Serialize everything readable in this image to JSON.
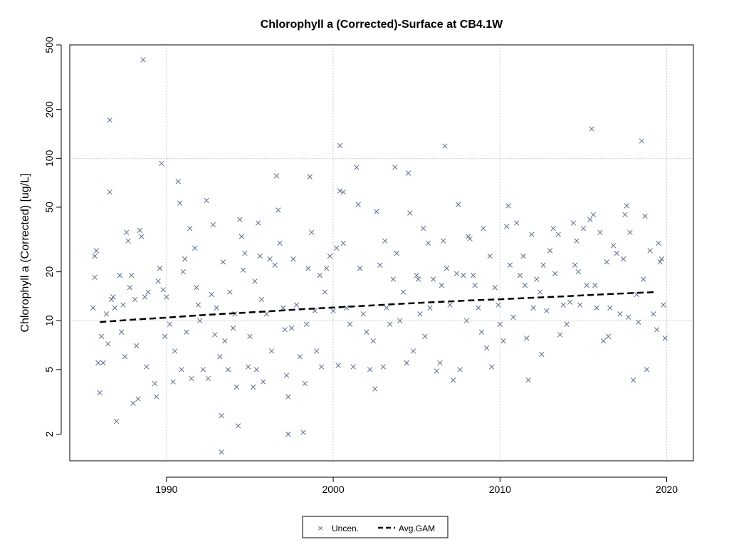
{
  "chart_data": {
    "type": "scatter",
    "title": "Chlorophyll a (Corrected)-Surface at CB4.1W",
    "xlabel": "",
    "ylabel": "Chlorophyll a (Corrected) [ug/L]",
    "xlim": [
      1984.2,
      2021.6
    ],
    "ylim": [
      1.37,
      500
    ],
    "y_scale": "log",
    "x_ticks": [
      1990,
      2000,
      2010,
      2020
    ],
    "y_ticks": [
      2,
      5,
      10,
      20,
      50,
      100,
      200,
      500
    ],
    "grid": true,
    "legend": {
      "position": "bottom-center",
      "entries": [
        "Uncen.",
        "Avg.GAM"
      ]
    },
    "colors": {
      "points": "#5a6e8c",
      "gam": "#000000",
      "grid": "#cccccc"
    },
    "series": [
      {
        "name": "Uncen.",
        "kind": "points",
        "marker": "x",
        "points": [
          [
            1985.6,
            12.0
          ],
          [
            1985.7,
            25.0
          ],
          [
            1985.8,
            27.0
          ],
          [
            1985.7,
            18.5
          ],
          [
            1985.9,
            5.5
          ],
          [
            1986.0,
            3.6
          ],
          [
            1986.1,
            8.0
          ],
          [
            1986.2,
            5.5
          ],
          [
            1986.4,
            11.0
          ],
          [
            1986.5,
            7.2
          ],
          [
            1986.6,
            62.0
          ],
          [
            1986.6,
            172.0
          ],
          [
            1986.7,
            13.5
          ],
          [
            1986.8,
            14.0
          ],
          [
            1986.9,
            12.0
          ],
          [
            1987.0,
            2.4
          ],
          [
            1987.2,
            19.0
          ],
          [
            1987.3,
            8.5
          ],
          [
            1987.4,
            12.5
          ],
          [
            1987.5,
            6.0
          ],
          [
            1987.6,
            35.0
          ],
          [
            1987.7,
            31.0
          ],
          [
            1987.8,
            16.0
          ],
          [
            1987.9,
            19.0
          ],
          [
            1988.0,
            3.1
          ],
          [
            1988.2,
            7.0
          ],
          [
            1988.3,
            3.3
          ],
          [
            1988.4,
            36.0
          ],
          [
            1988.5,
            33.0
          ],
          [
            1988.6,
            405.0
          ],
          [
            1988.7,
            14.0
          ],
          [
            1988.8,
            5.2
          ],
          [
            1988.9,
            15.0
          ],
          [
            1989.3,
            4.1
          ],
          [
            1989.4,
            3.4
          ],
          [
            1989.5,
            17.5
          ],
          [
            1989.6,
            21.0
          ],
          [
            1989.7,
            93.0
          ],
          [
            1989.8,
            15.5
          ],
          [
            1989.9,
            8.0
          ],
          [
            1990.0,
            14.0
          ],
          [
            1990.2,
            9.5
          ],
          [
            1990.4,
            4.2
          ],
          [
            1990.5,
            6.5
          ],
          [
            1990.7,
            72.0
          ],
          [
            1990.8,
            53.0
          ],
          [
            1990.9,
            5.0
          ],
          [
            1991.0,
            20.0
          ],
          [
            1991.2,
            8.5
          ],
          [
            1991.4,
            37.0
          ],
          [
            1991.5,
            4.4
          ],
          [
            1991.7,
            28.0
          ],
          [
            1991.8,
            16.0
          ],
          [
            1991.9,
            12.5
          ],
          [
            1992.0,
            10.0
          ],
          [
            1992.2,
            5.0
          ],
          [
            1992.4,
            55.0
          ],
          [
            1992.5,
            4.4
          ],
          [
            1992.7,
            14.5
          ],
          [
            1992.8,
            39.0
          ],
          [
            1992.9,
            8.2
          ],
          [
            1993.0,
            12.0
          ],
          [
            1993.2,
            6.0
          ],
          [
            1993.3,
            2.6
          ],
          [
            1993.3,
            1.55
          ],
          [
            1993.4,
            23.0
          ],
          [
            1993.5,
            7.5
          ],
          [
            1993.7,
            5.0
          ],
          [
            1993.8,
            15.0
          ],
          [
            1994.0,
            9.0
          ],
          [
            1994.2,
            3.9
          ],
          [
            1994.3,
            2.25
          ],
          [
            1994.4,
            42.0
          ],
          [
            1994.5,
            33.0
          ],
          [
            1994.6,
            20.5
          ],
          [
            1994.7,
            26.0
          ],
          [
            1994.9,
            5.2
          ],
          [
            1995.0,
            8.0
          ],
          [
            1995.2,
            3.9
          ],
          [
            1995.3,
            17.5
          ],
          [
            1995.4,
            5.0
          ],
          [
            1995.5,
            40.0
          ],
          [
            1995.6,
            25.0
          ],
          [
            1995.7,
            13.5
          ],
          [
            1995.8,
            4.2
          ],
          [
            1996.0,
            11.0
          ],
          [
            1996.2,
            24.0
          ],
          [
            1996.3,
            6.5
          ],
          [
            1996.5,
            22.0
          ],
          [
            1996.6,
            78.0
          ],
          [
            1996.7,
            48.0
          ],
          [
            1996.8,
            30.0
          ],
          [
            1997.0,
            12.0
          ],
          [
            1997.2,
            4.6
          ],
          [
            1997.3,
            3.4
          ],
          [
            1997.3,
            2.0
          ],
          [
            1997.5,
            9.0
          ],
          [
            1997.6,
            24.0
          ],
          [
            1997.8,
            12.5
          ],
          [
            1998.0,
            6.0
          ],
          [
            1998.2,
            2.05
          ],
          [
            1998.3,
            4.1
          ],
          [
            1998.4,
            9.5
          ],
          [
            1998.5,
            21.0
          ],
          [
            1998.6,
            77.0
          ],
          [
            1998.7,
            35.0
          ],
          [
            1998.9,
            11.5
          ],
          [
            1999.0,
            6.5
          ],
          [
            1999.2,
            19.0
          ],
          [
            1999.3,
            5.2
          ],
          [
            1999.5,
            15.0
          ],
          [
            1999.6,
            21.0
          ],
          [
            1999.8,
            25.0
          ],
          [
            2000.0,
            11.5
          ],
          [
            2000.2,
            28.0
          ],
          [
            2000.3,
            5.3
          ],
          [
            2000.4,
            120.0
          ],
          [
            2000.4,
            63.0
          ],
          [
            2000.6,
            62.0
          ],
          [
            2000.6,
            30.0
          ],
          [
            2000.8,
            12.0
          ],
          [
            2001.0,
            9.5
          ],
          [
            2001.2,
            5.2
          ],
          [
            2001.4,
            88.0
          ],
          [
            2001.5,
            52.0
          ],
          [
            2001.6,
            21.0
          ],
          [
            2001.8,
            11.0
          ],
          [
            2002.0,
            8.5
          ],
          [
            2002.2,
            5.0
          ],
          [
            2002.4,
            7.5
          ],
          [
            2002.5,
            3.8
          ],
          [
            2002.6,
            47.0
          ],
          [
            2002.8,
            22.0
          ],
          [
            2003.0,
            5.2
          ],
          [
            2003.2,
            12.0
          ],
          [
            2003.4,
            9.5
          ],
          [
            2003.6,
            18.0
          ],
          [
            2003.7,
            88.0
          ],
          [
            2003.8,
            26.0
          ],
          [
            2004.0,
            10.0
          ],
          [
            2004.2,
            15.0
          ],
          [
            2004.4,
            5.5
          ],
          [
            2004.5,
            81.0
          ],
          [
            2004.6,
            46.0
          ],
          [
            2004.8,
            6.5
          ],
          [
            2005.0,
            19.0
          ],
          [
            2005.2,
            11.0
          ],
          [
            2005.4,
            37.0
          ],
          [
            2005.5,
            8.0
          ],
          [
            2005.7,
            30.0
          ],
          [
            2005.8,
            12.0
          ],
          [
            2006.0,
            18.0
          ],
          [
            2006.2,
            4.9
          ],
          [
            2006.4,
            5.5
          ],
          [
            2006.5,
            16.5
          ],
          [
            2006.6,
            31.0
          ],
          [
            2006.7,
            119.0
          ],
          [
            2006.8,
            21.0
          ],
          [
            2007.0,
            12.5
          ],
          [
            2007.2,
            4.3
          ],
          [
            2007.4,
            19.5
          ],
          [
            2007.5,
            52.0
          ],
          [
            2007.6,
            5.0
          ],
          [
            2007.8,
            19.0
          ],
          [
            2008.0,
            10.0
          ],
          [
            2008.2,
            32.0
          ],
          [
            2008.4,
            19.0
          ],
          [
            2008.5,
            16.5
          ],
          [
            2008.7,
            12.0
          ],
          [
            2008.9,
            8.5
          ],
          [
            2009.0,
            37.0
          ],
          [
            2009.2,
            6.8
          ],
          [
            2009.4,
            25.0
          ],
          [
            2009.5,
            5.2
          ],
          [
            2009.7,
            16.0
          ],
          [
            2009.9,
            12.5
          ],
          [
            2010.0,
            9.5
          ],
          [
            2010.2,
            7.5
          ],
          [
            2010.4,
            38.0
          ],
          [
            2010.5,
            51.0
          ],
          [
            2010.6,
            22.0
          ],
          [
            2010.8,
            10.5
          ],
          [
            2011.0,
            40.0
          ],
          [
            2011.2,
            19.0
          ],
          [
            2011.4,
            25.0
          ],
          [
            2011.5,
            16.5
          ],
          [
            2011.6,
            7.8
          ],
          [
            2011.7,
            4.3
          ],
          [
            2011.9,
            34.0
          ],
          [
            2012.0,
            12.0
          ],
          [
            2012.2,
            18.0
          ],
          [
            2012.4,
            15.0
          ],
          [
            2012.5,
            6.2
          ],
          [
            2012.6,
            22.0
          ],
          [
            2012.8,
            11.5
          ],
          [
            2013.0,
            27.0
          ],
          [
            2013.2,
            37.0
          ],
          [
            2013.3,
            19.5
          ],
          [
            2013.5,
            34.0
          ],
          [
            2013.6,
            8.2
          ],
          [
            2013.8,
            12.5
          ],
          [
            2014.0,
            9.5
          ],
          [
            2014.2,
            13.0
          ],
          [
            2014.4,
            40.0
          ],
          [
            2014.5,
            22.0
          ],
          [
            2014.6,
            31.0
          ],
          [
            2014.7,
            20.0
          ],
          [
            2014.8,
            12.5
          ],
          [
            2015.0,
            37.0
          ],
          [
            2015.2,
            16.5
          ],
          [
            2015.4,
            42.0
          ],
          [
            2015.5,
            152.0
          ],
          [
            2015.6,
            45.0
          ],
          [
            2015.7,
            16.5
          ],
          [
            2015.8,
            12.0
          ],
          [
            2016.0,
            35.0
          ],
          [
            2016.2,
            7.5
          ],
          [
            2016.4,
            23.0
          ],
          [
            2016.5,
            8.0
          ],
          [
            2016.6,
            12.0
          ],
          [
            2016.8,
            29.0
          ],
          [
            2017.0,
            26.0
          ],
          [
            2017.2,
            11.0
          ],
          [
            2017.4,
            24.0
          ],
          [
            2017.5,
            45.0
          ],
          [
            2017.6,
            51.0
          ],
          [
            2017.7,
            10.5
          ],
          [
            2017.8,
            35.0
          ],
          [
            2018.0,
            4.3
          ],
          [
            2018.2,
            14.5
          ],
          [
            2018.3,
            9.8
          ],
          [
            2018.5,
            128.0
          ],
          [
            2018.6,
            18.0
          ],
          [
            2018.7,
            44.0
          ],
          [
            2018.8,
            5.0
          ],
          [
            2019.0,
            27.0
          ],
          [
            2019.2,
            11.0
          ],
          [
            2019.4,
            8.8
          ],
          [
            2019.5,
            30.0
          ],
          [
            2019.6,
            23.0
          ],
          [
            2019.7,
            24.0
          ],
          [
            2019.8,
            12.5
          ],
          [
            2019.9,
            7.8
          ],
          [
            1988.1,
            13.5
          ],
          [
            1991.1,
            24.0
          ],
          [
            1994.1,
            11.0
          ],
          [
            1997.1,
            8.8
          ],
          [
            2003.1,
            31.0
          ],
          [
            2005.1,
            18.0
          ],
          [
            2008.1,
            33.0
          ]
        ]
      },
      {
        "name": "Avg.GAM",
        "kind": "line",
        "dash": true,
        "points": [
          [
            1986.0,
            9.8
          ],
          [
            1988.0,
            10.15
          ],
          [
            1990.0,
            10.45
          ],
          [
            1992.0,
            10.8
          ],
          [
            1994.0,
            11.1
          ],
          [
            1996.0,
            11.4
          ],
          [
            1998.0,
            11.75
          ],
          [
            2000.0,
            12.05
          ],
          [
            2002.0,
            12.35
          ],
          [
            2004.0,
            12.7
          ],
          [
            2006.0,
            13.0
          ],
          [
            2008.0,
            13.3
          ],
          [
            2010.0,
            13.55
          ],
          [
            2012.0,
            13.85
          ],
          [
            2014.0,
            14.15
          ],
          [
            2016.0,
            14.5
          ],
          [
            2018.0,
            14.8
          ],
          [
            2019.3,
            15.0
          ]
        ]
      }
    ]
  }
}
